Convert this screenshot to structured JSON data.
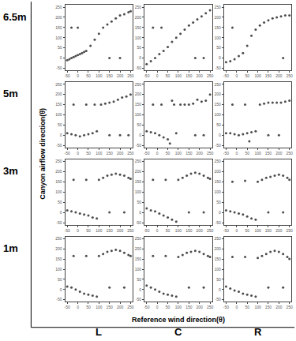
{
  "chart_data": {
    "type": "scatter",
    "xlabel": "Reference wind direction(θ)",
    "ylabel": "Canyon airflow direction(θ)",
    "row_labels": [
      "6.5m",
      "5m",
      "3m",
      "1m"
    ],
    "column_labels": [
      "L",
      "C",
      "R"
    ],
    "xlim": [
      -60,
      260
    ],
    "ylim": [
      -60,
      260
    ],
    "xticks": [
      -50,
      0,
      50,
      100,
      150,
      200,
      250
    ],
    "yticks": [
      -50,
      0,
      50,
      100,
      150,
      200,
      250
    ],
    "color": "#000000",
    "marker": "circle",
    "panels": [
      {
        "row": "6.5m",
        "column": "L",
        "x": [
          -50,
          -40,
          -30,
          -20,
          -10,
          0,
          10,
          20,
          30,
          40,
          60,
          80,
          100,
          120,
          140,
          160,
          180,
          200,
          220,
          240,
          250,
          -30,
          0,
          150,
          200
        ],
        "values": [
          -10,
          -5,
          0,
          5,
          10,
          15,
          20,
          25,
          30,
          35,
          60,
          90,
          120,
          150,
          165,
          180,
          195,
          210,
          215,
          225,
          230,
          150,
          150,
          0,
          0
        ]
      },
      {
        "row": "6.5m",
        "column": "C",
        "x": [
          -50,
          -30,
          -10,
          10,
          30,
          50,
          70,
          90,
          110,
          130,
          150,
          170,
          190,
          210,
          230,
          250,
          -20,
          20,
          180,
          220
        ],
        "values": [
          -30,
          -15,
          0,
          20,
          35,
          55,
          80,
          100,
          120,
          140,
          160,
          175,
          190,
          205,
          220,
          235,
          150,
          150,
          0,
          0
        ]
      },
      {
        "row": "6.5m",
        "column": "R",
        "x": [
          -50,
          -30,
          -10,
          10,
          30,
          50,
          70,
          90,
          110,
          130,
          150,
          170,
          190,
          210,
          230,
          250,
          -20,
          220
        ],
        "values": [
          -20,
          -15,
          -5,
          10,
          25,
          60,
          110,
          140,
          160,
          175,
          185,
          195,
          200,
          205,
          210,
          210,
          150,
          0
        ]
      },
      {
        "row": "5m",
        "column": "L",
        "x": [
          -50,
          -30,
          -10,
          10,
          30,
          50,
          70,
          90,
          110,
          130,
          150,
          170,
          190,
          210,
          230,
          250,
          -20,
          40,
          80,
          150,
          200,
          240
        ],
        "values": [
          10,
          5,
          0,
          -5,
          0,
          5,
          10,
          20,
          150,
          155,
          160,
          165,
          175,
          185,
          190,
          200,
          150,
          150,
          150,
          0,
          0,
          0
        ]
      },
      {
        "row": "5m",
        "column": "C",
        "x": [
          -50,
          -30,
          -10,
          10,
          30,
          50,
          60,
          90,
          110,
          130,
          150,
          170,
          190,
          210,
          230,
          250,
          -20,
          20,
          80,
          180,
          220,
          70
        ],
        "values": [
          20,
          15,
          10,
          0,
          -10,
          -20,
          -40,
          10,
          150,
          150,
          150,
          155,
          175,
          165,
          170,
          200,
          150,
          150,
          150,
          0,
          0,
          170
        ]
      },
      {
        "row": "5m",
        "column": "R",
        "x": [
          -50,
          -30,
          -10,
          10,
          30,
          50,
          70,
          90,
          110,
          130,
          150,
          170,
          190,
          210,
          230,
          250,
          -20,
          40,
          150,
          200,
          60
        ],
        "values": [
          10,
          10,
          5,
          0,
          5,
          10,
          15,
          20,
          150,
          155,
          160,
          160,
          160,
          160,
          165,
          170,
          150,
          150,
          0,
          0,
          -30
        ]
      },
      {
        "row": "3m",
        "column": "L",
        "x": [
          -50,
          -30,
          -10,
          10,
          30,
          50,
          70,
          90,
          100,
          120,
          140,
          160,
          180,
          200,
          220,
          240,
          250,
          -20,
          40,
          150,
          220
        ],
        "values": [
          10,
          5,
          0,
          -5,
          -10,
          -15,
          -25,
          -30,
          160,
          170,
          180,
          185,
          190,
          185,
          180,
          170,
          165,
          160,
          160,
          0,
          0
        ]
      },
      {
        "row": "3m",
        "column": "C",
        "x": [
          -50,
          -30,
          -10,
          10,
          30,
          50,
          70,
          90,
          100,
          120,
          140,
          160,
          180,
          200,
          220,
          240,
          250,
          -20,
          40,
          150,
          220
        ],
        "values": [
          20,
          10,
          5,
          -5,
          -15,
          -25,
          -35,
          -45,
          160,
          170,
          180,
          190,
          195,
          190,
          180,
          170,
          165,
          160,
          160,
          0,
          0
        ]
      },
      {
        "row": "3m",
        "column": "R",
        "x": [
          -50,
          -30,
          -10,
          10,
          30,
          50,
          70,
          90,
          100,
          120,
          140,
          160,
          180,
          200,
          220,
          240,
          250,
          -20,
          40,
          150,
          220
        ],
        "values": [
          10,
          5,
          0,
          -5,
          -10,
          -20,
          -30,
          -35,
          150,
          160,
          170,
          175,
          180,
          185,
          180,
          170,
          160,
          150,
          155,
          0,
          0
        ]
      },
      {
        "row": "1m",
        "column": "L",
        "x": [
          -50,
          -30,
          -10,
          10,
          30,
          50,
          70,
          90,
          100,
          120,
          140,
          160,
          180,
          200,
          220,
          240,
          250,
          -20,
          40,
          150,
          220
        ],
        "values": [
          15,
          10,
          0,
          -10,
          -20,
          -25,
          -30,
          -35,
          165,
          175,
          185,
          190,
          195,
          190,
          180,
          170,
          165,
          165,
          165,
          10,
          10
        ]
      },
      {
        "row": "1m",
        "column": "C",
        "x": [
          -50,
          -30,
          -10,
          10,
          30,
          50,
          70,
          90,
          100,
          120,
          140,
          160,
          180,
          200,
          220,
          240,
          250,
          -20,
          40,
          150,
          220
        ],
        "values": [
          20,
          10,
          0,
          -10,
          -20,
          -25,
          -30,
          -35,
          160,
          170,
          180,
          185,
          190,
          185,
          175,
          165,
          160,
          165,
          165,
          10,
          10
        ]
      },
      {
        "row": "1m",
        "column": "R",
        "x": [
          -50,
          -30,
          -10,
          10,
          30,
          50,
          70,
          90,
          100,
          120,
          140,
          160,
          180,
          200,
          220,
          240,
          250,
          -20,
          40,
          150,
          220
        ],
        "values": [
          15,
          5,
          -5,
          -10,
          -20,
          -25,
          -30,
          -35,
          155,
          165,
          175,
          185,
          190,
          185,
          175,
          160,
          150,
          160,
          160,
          10,
          10
        ]
      }
    ]
  }
}
